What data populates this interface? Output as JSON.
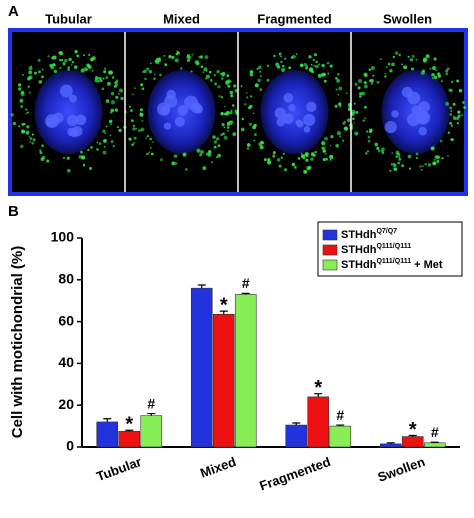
{
  "panels": {
    "a": {
      "label": "A",
      "image_titles": [
        "Tubular",
        "Mixed",
        "Fragmented",
        "Swollen"
      ]
    },
    "b": {
      "label": "B"
    }
  },
  "chart_data": {
    "type": "bar",
    "y_label": "Cell with motichondrial (%)",
    "categories": [
      "Tubular",
      "Mixed",
      "Fragmented",
      "Swollen"
    ],
    "series": [
      {
        "name": "STHdh",
        "superscript": "Q7/Q7",
        "color": "#2233dd",
        "values": [
          12,
          76,
          10.5,
          1.5
        ],
        "errors": [
          1.5,
          1.5,
          1,
          0.5
        ]
      },
      {
        "name": "STHdh",
        "superscript": "Q111/Q111",
        "color": "#ee1111",
        "values": [
          7.5,
          63.5,
          24,
          5
        ],
        "errors": [
          0.5,
          1.5,
          1.5,
          0.5
        ],
        "annotations": [
          "*",
          "*",
          "*",
          "*"
        ]
      },
      {
        "name": "STHdh",
        "superscript": "Q111/Q111",
        "suffix": " + Met",
        "color": "#88ee55",
        "values": [
          15,
          73,
          10,
          2
        ],
        "errors": [
          1,
          0.5,
          0.5,
          0.3
        ],
        "annotations": [
          "#",
          "#",
          "#",
          "#"
        ]
      }
    ],
    "ylim": [
      0,
      100
    ],
    "yticks": [
      0,
      20,
      40,
      60,
      80,
      100
    ],
    "grid": false
  }
}
